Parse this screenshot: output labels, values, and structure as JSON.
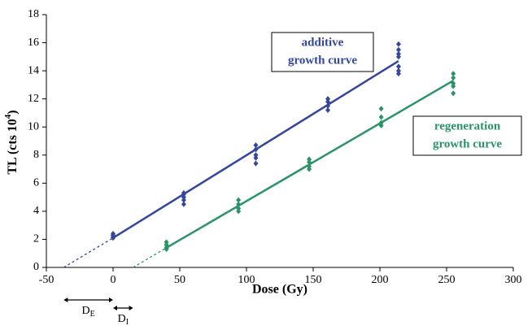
{
  "chart_data": {
    "type": "scatter",
    "xlabel": "Dose (Gy)",
    "ylabel": {
      "text": "TL (cts 10",
      "sup": "4",
      "end": ")"
    },
    "xlim": [
      -50,
      300
    ],
    "xticks": [
      -50,
      0,
      50,
      100,
      150,
      200,
      250,
      300
    ],
    "ylim": [
      0,
      18
    ],
    "yticks": [
      0,
      2,
      4,
      6,
      8,
      10,
      12,
      14,
      16,
      18
    ],
    "grid": false,
    "series": [
      {
        "name": [
          "additive",
          "growth curve"
        ],
        "color": "#34479c",
        "x": [
          0,
          0,
          0,
          0,
          53,
          53,
          53,
          53,
          53,
          107,
          107,
          107,
          107,
          107,
          161,
          161,
          161,
          161,
          214,
          214,
          214,
          214,
          214,
          214,
          214
        ],
        "y": [
          2.1,
          2.2,
          2.3,
          2.4,
          4.5,
          4.8,
          5.0,
          5.2,
          5.3,
          7.4,
          7.8,
          8.0,
          8.4,
          8.7,
          11.2,
          11.5,
          11.8,
          12.0,
          13.8,
          14.0,
          14.3,
          15.0,
          15.2,
          15.5,
          15.9
        ],
        "fit_x": [
          -37,
          0,
          214
        ],
        "fit_y": [
          0,
          2.1,
          14.7
        ]
      },
      {
        "name": [
          "regeneration",
          "growth curve"
        ],
        "color": "#2a9468",
        "x": [
          40,
          40,
          40,
          40,
          94,
          94,
          94,
          94,
          147,
          147,
          147,
          147,
          201,
          201,
          201,
          201,
          255,
          255,
          255,
          255,
          255
        ],
        "y": [
          1.3,
          1.4,
          1.6,
          1.8,
          4.0,
          4.2,
          4.5,
          4.8,
          7.0,
          7.2,
          7.5,
          7.7,
          10.1,
          10.3,
          10.7,
          11.3,
          12.4,
          12.9,
          13.1,
          13.5,
          13.8
        ],
        "fit_x": [
          15,
          40,
          255
        ],
        "fit_y": [
          0,
          1.4,
          13.3
        ]
      }
    ],
    "annotations": [
      {
        "main": "D",
        "sub": "E",
        "from": -37,
        "to": 0
      },
      {
        "main": "D",
        "sub": "I",
        "from": 0,
        "to": 15
      }
    ]
  }
}
